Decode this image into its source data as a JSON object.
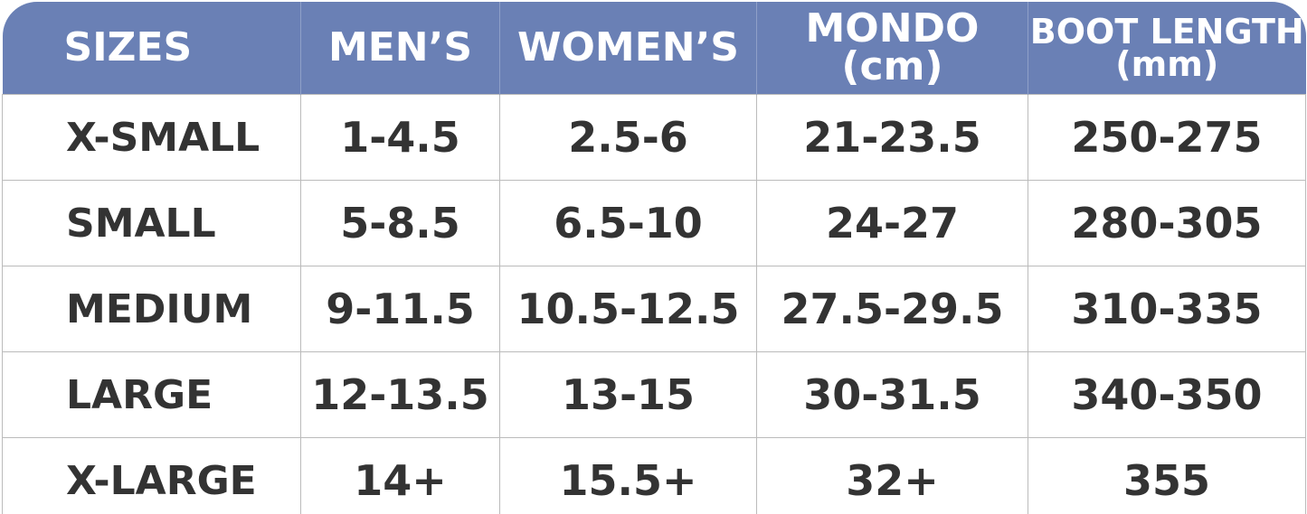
{
  "table": {
    "header": [
      "SIZES",
      "MEN’S",
      "WOMEN’S",
      "MONDO (cm)",
      "BOOT LENGTH (mm)"
    ],
    "rows": [
      [
        "X-SMALL",
        "1-4.5",
        "2.5-6",
        "21-23.5",
        "250-275"
      ],
      [
        "SMALL",
        "5-8.5",
        "6.5-10",
        "24-27",
        "280-305"
      ],
      [
        "MEDIUM",
        "9-11.5",
        "10.5-12.5",
        "27.5-29.5",
        "310-335"
      ],
      [
        "LARGE",
        "12-13.5",
        "13-15",
        "30-31.5",
        "340-350"
      ],
      [
        "X-LARGE",
        "14+",
        "15.5+",
        "32+",
        "355"
      ]
    ]
  }
}
